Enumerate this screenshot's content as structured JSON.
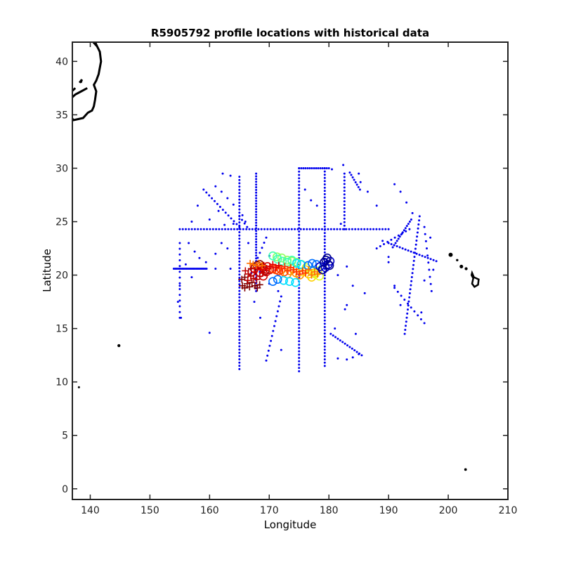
{
  "chart_data": {
    "type": "scatter",
    "title": "R5905792 profile locations with historical data",
    "xlabel": "Longitude",
    "ylabel": "Latitude",
    "xlim": [
      137,
      210
    ],
    "ylim": [
      -1,
      41.8
    ],
    "xticks": [
      140,
      150,
      160,
      170,
      180,
      190,
      200,
      210
    ],
    "yticks": [
      0,
      5,
      10,
      15,
      20,
      25,
      30,
      35,
      40
    ],
    "grid": false,
    "series": [
      {
        "role": "historical-profiles",
        "marker": "dot",
        "color": "#0000ee",
        "tracks": [
          {
            "from": [
              155,
              24.3
            ],
            "to": [
              190,
              24.3
            ],
            "points": 70
          },
          {
            "from": [
              154,
              20.6
            ],
            "to": [
              159.5,
              20.6
            ],
            "points": 24
          },
          {
            "from": [
              165,
              29.2
            ],
            "to": [
              165,
              11.2
            ],
            "points": 60
          },
          {
            "from": [
              167.8,
              29.5
            ],
            "to": [
              167.8,
              18.5
            ],
            "points": 44
          },
          {
            "from": [
              175,
              30
            ],
            "to": [
              175,
              11
            ],
            "points": 62
          },
          {
            "from": [
              175,
              30
            ],
            "to": [
              180,
              30
            ],
            "points": 15
          },
          {
            "from": [
              179.3,
              30
            ],
            "to": [
              179.3,
              11.5
            ],
            "points": 62
          },
          {
            "from": [
              182.6,
              29.5
            ],
            "to": [
              182.6,
              24.3
            ],
            "points": 17
          },
          {
            "from": [
              183.5,
              29.6
            ],
            "to": [
              185.2,
              28
            ],
            "points": 8
          },
          {
            "from": [
              195.2,
              25.5
            ],
            "to": [
              192.7,
              14.5
            ],
            "points": 30
          },
          {
            "from": [
              193.8,
              25.2
            ],
            "to": [
              190.7,
              22.6
            ],
            "points": 14
          },
          {
            "from": [
              193.5,
              24.3
            ],
            "to": [
              188,
              22.5
            ],
            "points": 10
          },
          {
            "from": [
              190,
              23
            ],
            "to": [
              198,
              21.3
            ],
            "points": 18
          },
          {
            "from": [
              155,
              23
            ],
            "to": [
              155,
              16
            ],
            "points": 14
          },
          {
            "from": [
              169.5,
              12
            ],
            "to": [
              172,
              18
            ],
            "points": 14
          },
          {
            "from": [
              159,
              28
            ],
            "to": [
              165,
              24.5
            ],
            "points": 14
          },
          {
            "from": [
              169.5,
              23.5
            ],
            "to": [
              167,
              20.2
            ],
            "points": 8
          },
          {
            "from": [
              180.3,
              14.5
            ],
            "to": [
              185.5,
              12.5
            ],
            "points": 14
          },
          {
            "from": [
              165,
              25.5
            ],
            "to": [
              166.3,
              24.5
            ],
            "points": 4
          },
          {
            "from": [
              191,
              18.8
            ],
            "to": [
              196,
              15.5
            ],
            "points": 10
          },
          {
            "from": [
              196,
              24.5
            ],
            "to": [
              197.2,
              18.5
            ],
            "points": 10
          }
        ],
        "scatter": [
          [
            161,
            28.3
          ],
          [
            162,
            27.8
          ],
          [
            163,
            27.2
          ],
          [
            164,
            26.6
          ],
          [
            161.5,
            26
          ],
          [
            160,
            25.2
          ],
          [
            158,
            26.5
          ],
          [
            157,
            25
          ],
          [
            156.5,
            23
          ],
          [
            157.5,
            22.2
          ],
          [
            158.3,
            21.6
          ],
          [
            159.4,
            21.2
          ],
          [
            161,
            22
          ],
          [
            162,
            23
          ],
          [
            163,
            22.5
          ],
          [
            162.5,
            24.7
          ],
          [
            164,
            24.8
          ],
          [
            165.5,
            25.6
          ],
          [
            166,
            25
          ],
          [
            166.5,
            23
          ],
          [
            163.5,
            20.6
          ],
          [
            161,
            20.6
          ],
          [
            160,
            14.6
          ],
          [
            155.2,
            16
          ],
          [
            168.4,
            20.3
          ],
          [
            182,
            24.8
          ],
          [
            183,
            20.8
          ],
          [
            183,
            17.2
          ],
          [
            182.7,
            16.8
          ],
          [
            184,
            19
          ],
          [
            184.5,
            14.5
          ],
          [
            181,
            15
          ],
          [
            181.5,
            12.2
          ],
          [
            183,
            12.1
          ],
          [
            184,
            12.3
          ],
          [
            185,
            12.6
          ],
          [
            192,
            17.2
          ],
          [
            191,
            19
          ],
          [
            196,
            19.5
          ],
          [
            195.5,
            16.5
          ],
          [
            197.5,
            20.5
          ],
          [
            186,
            18.3
          ],
          [
            189,
            23.2
          ],
          [
            190,
            21.7
          ],
          [
            155,
            19
          ],
          [
            154.7,
            17.5
          ],
          [
            156,
            21
          ],
          [
            157,
            19.8
          ],
          [
            185.3,
            28.7
          ],
          [
            186.5,
            27.8
          ],
          [
            188,
            26.5
          ],
          [
            191,
            28.5
          ],
          [
            192,
            27.8
          ],
          [
            193,
            26.8
          ],
          [
            194,
            25.8
          ],
          [
            176,
            28
          ],
          [
            177,
            27
          ],
          [
            178,
            26.5
          ],
          [
            170,
            21.8
          ],
          [
            172,
            13
          ],
          [
            167.5,
            17.5
          ],
          [
            168.5,
            16
          ],
          [
            181.5,
            20
          ],
          [
            190,
            21.2
          ],
          [
            197,
            23.5
          ],
          [
            162.2,
            29.5
          ],
          [
            163.5,
            29.3
          ],
          [
            185,
            29.5
          ],
          [
            180.5,
            29.9
          ],
          [
            182.4,
            30.3
          ],
          [
            170,
            19.2
          ],
          [
            171.5,
            18.5
          ]
        ]
      },
      {
        "role": "float-profiles",
        "marker": "circle",
        "color_order": [
          "#800000",
          "#d00000",
          "#ff4000",
          "#ff9000",
          "#ffd000",
          "#e0ff20",
          "#90ff60",
          "#40ffb0",
          "#00e0ff",
          "#0070ff",
          "#0000c8",
          "#000090"
        ],
        "lon": [
          167.1,
          167.5,
          168.0,
          168.4,
          168.9,
          169.3,
          169.7,
          168.5,
          169.0,
          169.5,
          170.1,
          170.6,
          171.1,
          171.6,
          172.0,
          172.5,
          173.0,
          173.5,
          174.0,
          174.5,
          175.1,
          175.6,
          176.1,
          176.6,
          177.1,
          177.6,
          178.1,
          178.4,
          177.7,
          177.0,
          176.2,
          175.4,
          174.6,
          173.8,
          173.0,
          172.1,
          171.3,
          170.6,
          171.4,
          172.2,
          173.0,
          173.8,
          174.6,
          175.3,
          174.4,
          173.4,
          172.4,
          171.4,
          170.6,
          176.5,
          177.2,
          177.9,
          178.5,
          179.0,
          179.4,
          179.9,
          180.2,
          179.7,
          179.2,
          178.9,
          179.5,
          180.1
        ],
        "lat": [
          20.3,
          20.6,
          20.9,
          21.0,
          20.7,
          20.4,
          20.8,
          20.2,
          19.9,
          20.3,
          20.5,
          20.6,
          20.5,
          20.4,
          20.5,
          20.3,
          20.1,
          20.4,
          20.6,
          20.2,
          20.0,
          20.3,
          20.5,
          20.1,
          19.8,
          20.2,
          20.4,
          19.9,
          20.1,
          20.4,
          20.7,
          21.0,
          21.2,
          21.3,
          21.4,
          21.6,
          21.7,
          21.8,
          21.5,
          21.3,
          21.2,
          21.4,
          21.1,
          21.0,
          19.3,
          19.4,
          19.5,
          19.6,
          19.4,
          20.9,
          21.1,
          21.0,
          20.8,
          20.5,
          20.7,
          21.0,
          21.3,
          21.6,
          21.2,
          20.5,
          21.4,
          20.9
        ]
      },
      {
        "role": "historical-ctd",
        "marker": "plus",
        "color_order": [
          "#800000",
          "#c00000",
          "#e00000",
          "#ff3000",
          "#ff7000"
        ],
        "lon": [
          165.5,
          165.9,
          166.3,
          166.7,
          167.1,
          167.6,
          168.0,
          168.4,
          165.4,
          165.9,
          166.4,
          166.9,
          167.4,
          167.9,
          168.4,
          168.9,
          166.0,
          166.5,
          167.0,
          167.5,
          168.0,
          168.6,
          169.1,
          169.6,
          170.1,
          170.6,
          171.1,
          171.6,
          172.1,
          172.6,
          173.1,
          173.6,
          174.1,
          174.6,
          175.1,
          175.6,
          176.1,
          176.6,
          177.1,
          177.6,
          178.1,
          166.8,
          167.3,
          167.8,
          168.3,
          168.8
        ],
        "lat": [
          19.0,
          18.8,
          19.2,
          18.9,
          19.3,
          19.0,
          18.8,
          19.1,
          19.6,
          19.8,
          19.5,
          19.9,
          19.7,
          19.6,
          19.9,
          20.2,
          20.4,
          20.1,
          20.6,
          20.3,
          20.7,
          20.5,
          20.9,
          20.6,
          20.8,
          21.0,
          20.7,
          20.9,
          20.6,
          20.8,
          20.4,
          20.7,
          20.5,
          20.3,
          20.1,
          20.4,
          20.2,
          20.5,
          20.0,
          20.3,
          20.1,
          21.1,
          21.0,
          20.9,
          21.1,
          20.9
        ]
      },
      {
        "role": "coastline",
        "color": "#000000",
        "polylines": [
          [
            [
              140.8,
              41.8
            ],
            [
              141.6,
              40.9
            ],
            [
              141.8,
              40.0
            ],
            [
              141.4,
              38.8
            ],
            [
              141.0,
              38.2
            ],
            [
              140.6,
              37.8
            ],
            [
              141.0,
              37.2
            ],
            [
              140.8,
              36.4
            ],
            [
              140.6,
              35.8
            ],
            [
              140.3,
              35.4
            ],
            [
              139.6,
              35.2
            ],
            [
              138.8,
              34.7
            ],
            [
              138.0,
              34.6
            ],
            [
              137.2,
              34.5
            ],
            [
              136.9,
              34.7
            ]
          ],
          [
            [
              139.5,
              37.5
            ],
            [
              138.5,
              37.2
            ],
            [
              137.5,
              36.9
            ],
            [
              136.9,
              36.6
            ],
            [
              136.9,
              37.2
            ],
            [
              137.5,
              37.5
            ]
          ],
          [
            [
              138.2,
              38.0
            ],
            [
              138.6,
              38.3
            ],
            [
              138.4,
              38.0
            ]
          ],
          [
            [
              140.5,
              41.8
            ],
            [
              141.0,
              41.5
            ],
            [
              140.9,
              41.8
            ]
          ]
        ],
        "islands": [
          {
            "lon": 144.8,
            "lat": 13.4,
            "r": 0.25
          },
          {
            "lon": 138.1,
            "lat": 9.5,
            "r": 0.15
          },
          {
            "lon": 200.4,
            "lat": 21.9,
            "r": 0.35
          },
          {
            "lon": 201.5,
            "lat": 21.4,
            "r": 0.2
          },
          {
            "lon": 202.2,
            "lat": 20.8,
            "r": 0.3
          },
          {
            "lon": 203.0,
            "lat": 20.6,
            "r": 0.25
          },
          {
            "lon": 202.9,
            "lat": 1.8,
            "r": 0.22
          }
        ],
        "big_island": [
          [
            204.0,
            20.2
          ],
          [
            204.3,
            19.8
          ],
          [
            205.1,
            19.6
          ],
          [
            205.0,
            19.1
          ],
          [
            204.4,
            18.9
          ],
          [
            204.0,
            19.2
          ],
          [
            204.2,
            19.7
          ],
          [
            203.9,
            20.0
          ],
          [
            204.0,
            20.2
          ]
        ]
      }
    ]
  }
}
